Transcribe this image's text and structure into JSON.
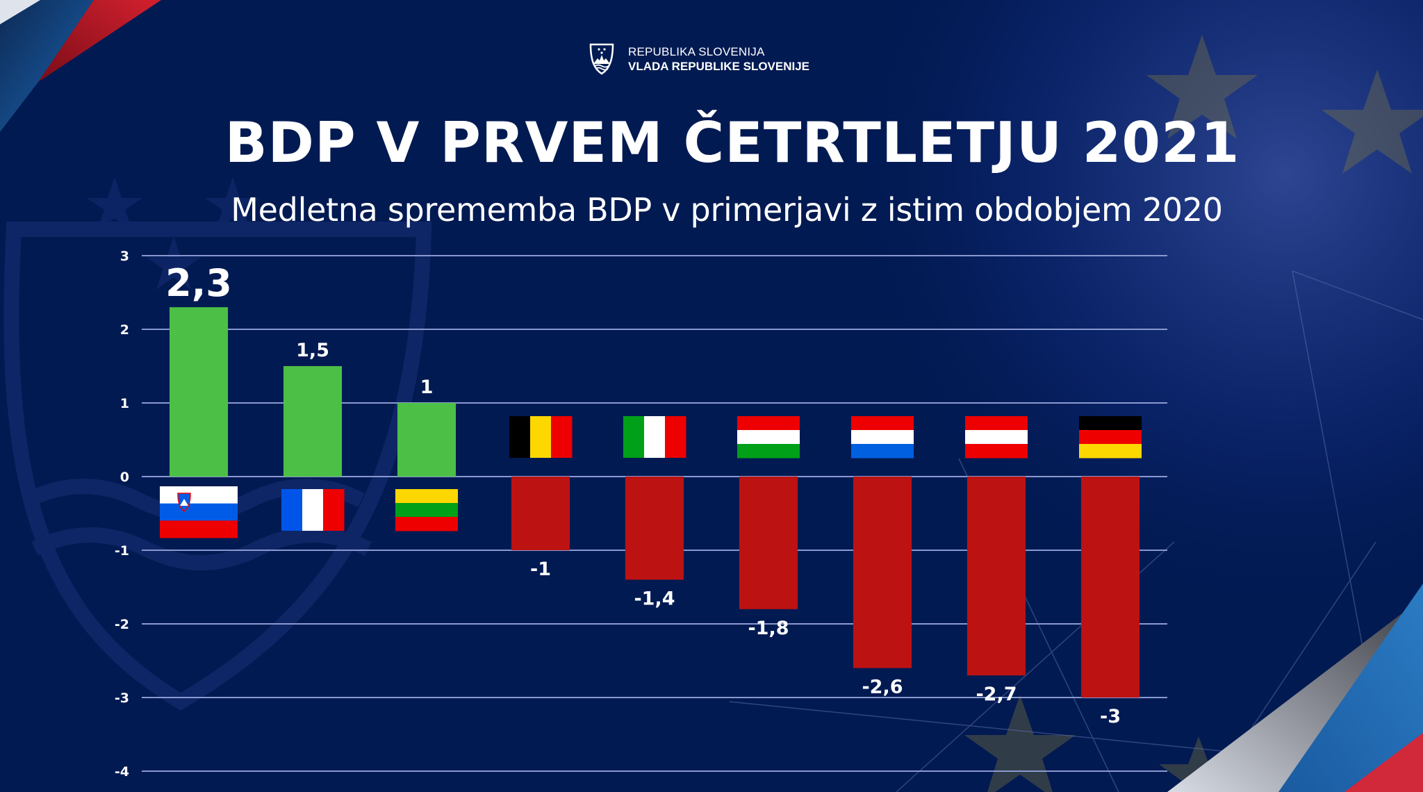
{
  "header": {
    "org_line1": "REPUBLIKA SLOVENIJA",
    "org_line2": "VLADA REPUBLIKE SLOVENIJE",
    "logo_icon": "slovenian-coat-of-arms-icon"
  },
  "colors": {
    "background": "#021a52",
    "positive_bar": "#4cc046",
    "negative_bar": "#bd1212",
    "gridline": "#8a9ad0",
    "text": "#ffffff"
  },
  "chart_data": {
    "type": "bar",
    "title": "BDP V PRVEM ČETRTLETJU 2021",
    "subtitle": "Medletna sprememba BDP v primerjavi z istim obdobjem 2020",
    "xlabel": "",
    "ylabel": "",
    "ylim": [
      -4,
      3
    ],
    "yticks": [
      3,
      2,
      1,
      0,
      -1,
      -2,
      -3,
      -4
    ],
    "ytick_labels": [
      "3",
      "2",
      "1",
      "0",
      "-1",
      "-2",
      "-3",
      "-4"
    ],
    "grid": true,
    "legend": "none",
    "categories": [
      "Slovenia",
      "France",
      "Lithuania",
      "Belgium",
      "Italy",
      "Hungary",
      "Netherlands",
      "Austria",
      "Germany"
    ],
    "values": [
      2.3,
      1.5,
      1.0,
      -1.0,
      -1.4,
      -1.8,
      -2.6,
      -2.7,
      -3.0
    ],
    "value_labels": [
      "2,3",
      "1,5",
      "1",
      "-1",
      "-1,4",
      "-1,8",
      "-2,6",
      "-2,7",
      "-3"
    ],
    "flags": [
      {
        "country": "Slovenia",
        "icon": "flag-slovenia-icon",
        "orientation": "h",
        "stripes": [
          "#ffffff",
          "#005ce6",
          "#ee0000"
        ],
        "emblem": true
      },
      {
        "country": "France",
        "icon": "flag-france-icon",
        "orientation": "v",
        "stripes": [
          "#0055e8",
          "#ffffff",
          "#ee0000"
        ]
      },
      {
        "country": "Lithuania",
        "icon": "flag-lithuania-icon",
        "orientation": "h",
        "stripes": [
          "#fdd800",
          "#00a018",
          "#ee0000"
        ]
      },
      {
        "country": "Belgium",
        "icon": "flag-belgium-icon",
        "orientation": "v",
        "stripes": [
          "#000000",
          "#fdd800",
          "#ee0000"
        ]
      },
      {
        "country": "Italy",
        "icon": "flag-italy-icon",
        "orientation": "v",
        "stripes": [
          "#00a018",
          "#ffffff",
          "#ee0000"
        ]
      },
      {
        "country": "Hungary",
        "icon": "flag-hungary-icon",
        "orientation": "h",
        "stripes": [
          "#ee0000",
          "#ffffff",
          "#00a018"
        ]
      },
      {
        "country": "Netherlands",
        "icon": "flag-netherlands-icon",
        "orientation": "h",
        "stripes": [
          "#ee0000",
          "#ffffff",
          "#0060e0"
        ]
      },
      {
        "country": "Austria",
        "icon": "flag-austria-icon",
        "orientation": "h",
        "stripes": [
          "#ee0000",
          "#ffffff",
          "#ee0000"
        ]
      },
      {
        "country": "Germany",
        "icon": "flag-germany-icon",
        "orientation": "h",
        "stripes": [
          "#000000",
          "#ee0000",
          "#fdd800"
        ]
      }
    ]
  }
}
